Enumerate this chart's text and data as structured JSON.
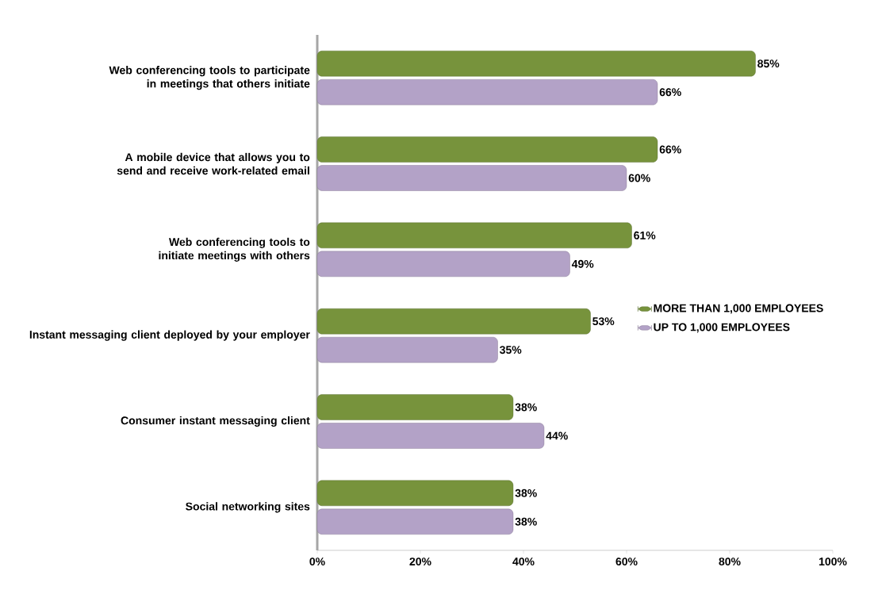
{
  "chart_data": {
    "type": "bar",
    "orientation": "horizontal",
    "categories": [
      "Web conferencing tools to participate in meetings that others initiate",
      "A mobile device that allows you to send and receive work-related email",
      "Web conferencing tools to initiate meetings with others",
      "Instant messaging client deployed by your employer",
      "Consumer instant messaging client",
      "Social networking sites"
    ],
    "series": [
      {
        "name": "MORE THAN 1,000 EMPLOYEES",
        "color": "#77933c",
        "values": [
          85,
          66,
          61,
          53,
          38,
          38
        ],
        "value_labels": [
          "85%",
          "66%",
          "61%",
          "53%",
          "38%",
          "38%"
        ]
      },
      {
        "name": "UP TO 1,000 EMPLOYEES",
        "color": "#b3a2c7",
        "values": [
          66,
          60,
          49,
          35,
          44,
          38
        ],
        "value_labels": [
          "66%",
          "60%",
          "49%",
          "35%",
          "44%",
          "38%"
        ]
      }
    ],
    "xlim": [
      0,
      100
    ],
    "xticks": [
      {
        "value": 0,
        "label": "0%"
      },
      {
        "value": 20,
        "label": "20%"
      },
      {
        "value": 40,
        "label": "40%"
      },
      {
        "value": 60,
        "label": "60%"
      },
      {
        "value": 80,
        "label": "80%"
      },
      {
        "value": 100,
        "label": "100%"
      }
    ],
    "legend": "right"
  }
}
